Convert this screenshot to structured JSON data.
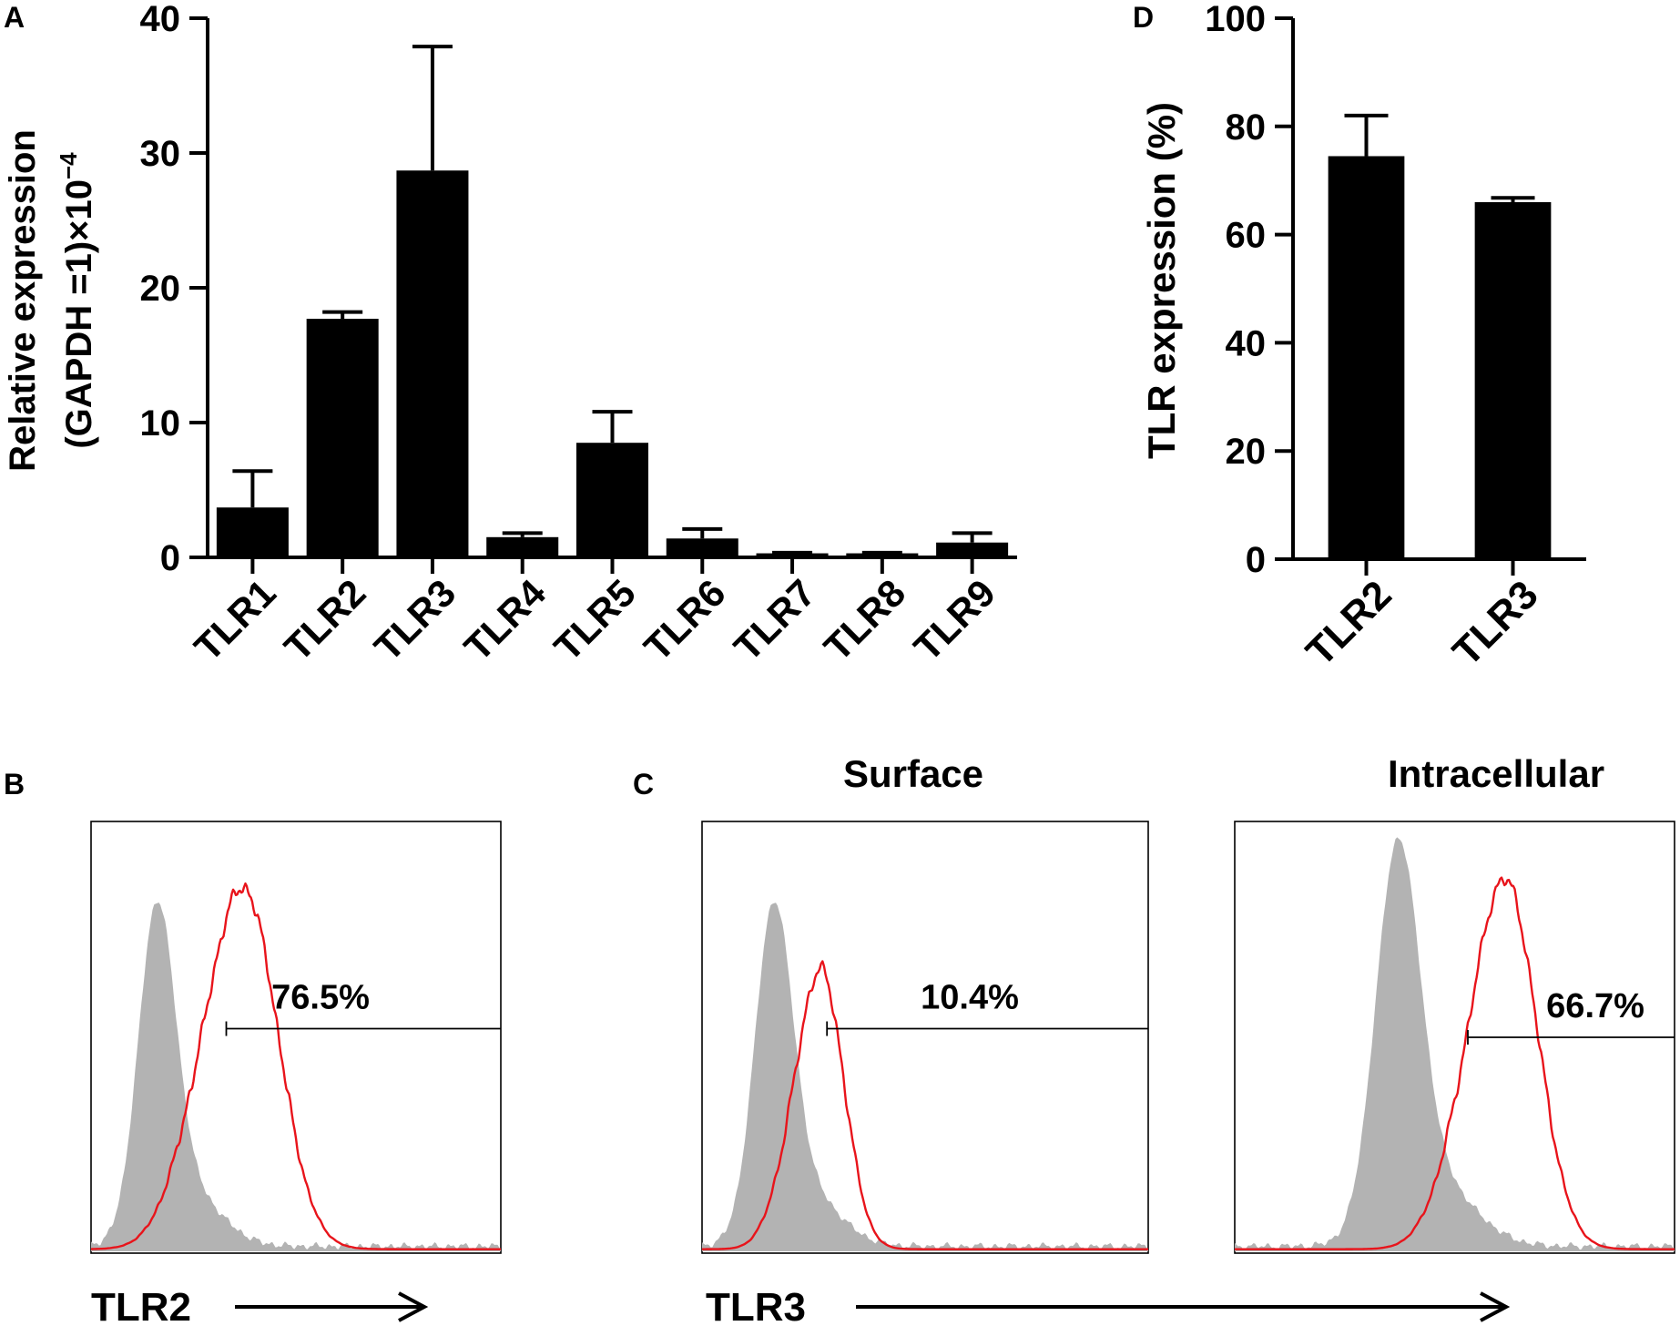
{
  "panels": {
    "A": "A",
    "B": "B",
    "C": "C",
    "D": "D"
  },
  "colors": {
    "bar": "#000000",
    "isotype_fill": "#b3b3b3",
    "stain_line": "#e8141b"
  },
  "chart_data": [
    {
      "id": "A",
      "type": "bar",
      "categories": [
        "TLR1",
        "TLR2",
        "TLR3",
        "TLR4",
        "TLR5",
        "TLR6",
        "TLR7",
        "TLR8",
        "TLR9"
      ],
      "values": [
        3.7,
        17.7,
        28.7,
        1.5,
        8.5,
        1.4,
        0.3,
        0.3,
        1.1
      ],
      "errors": [
        2.7,
        0.5,
        9.2,
        0.3,
        2.3,
        0.7,
        0.05,
        0.05,
        0.7
      ],
      "ylabel_line1": "Relative expression",
      "ylabel_line2": "(GAPDH =1)×10",
      "ylabel_sup": "−4",
      "ylim": [
        0,
        40
      ],
      "yticks": [
        "0",
        "10",
        "20",
        "30",
        "40"
      ]
    },
    {
      "id": "D",
      "type": "bar",
      "categories": [
        "TLR2",
        "TLR3"
      ],
      "values": [
        74.5,
        66.0
      ],
      "errors": [
        7.5,
        0.8
      ],
      "ylabel": "TLR expression (%)",
      "ylim": [
        0,
        100
      ],
      "yticks": [
        "0",
        "20",
        "40",
        "60",
        "80",
        "100"
      ]
    },
    {
      "id": "B",
      "type": "area",
      "marker": "TLR2",
      "gate_label": "76.5%"
    },
    {
      "id": "C",
      "type": "area",
      "marker": "TLR3",
      "subplots": [
        {
          "title": "Surface",
          "gate_label": "10.4%"
        },
        {
          "title": "Intracellular",
          "gate_label": "66.7%"
        }
      ]
    }
  ]
}
